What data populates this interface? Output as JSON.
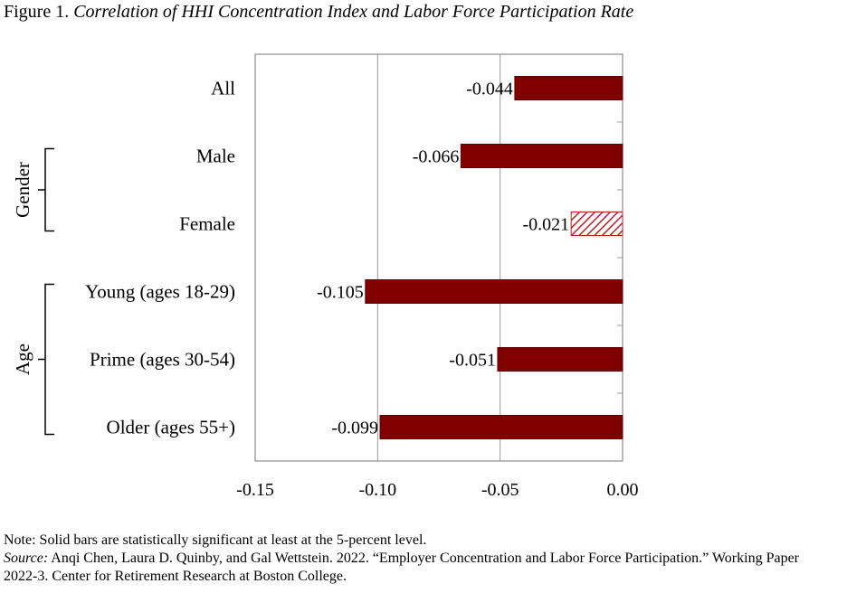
{
  "figure": {
    "label": "Figure 1.",
    "title": "Correlation of HHI Concentration Index and Labor Force Participation Rate"
  },
  "chart_data": {
    "type": "bar",
    "orientation": "horizontal",
    "title": "Correlation of HHI Concentration Index and Labor Force Participation Rate",
    "categories": [
      "All",
      "Male",
      "Female",
      "Young (ages 18-29)",
      "Prime (ages 30-54)",
      "Older (ages 55+)"
    ],
    "values": [
      -0.044,
      -0.066,
      -0.021,
      -0.105,
      -0.051,
      -0.099
    ],
    "value_labels": [
      "-0.044",
      "-0.066",
      "-0.021",
      "-0.105",
      "-0.051",
      "-0.099"
    ],
    "significant": [
      true,
      true,
      false,
      true,
      true,
      true
    ],
    "groups": [
      {
        "name": "Gender",
        "categories": [
          "Male",
          "Female"
        ]
      },
      {
        "name": "Age",
        "categories": [
          "Young (ages 18-29)",
          "Prime (ages 30-54)",
          "Older (ages 55+)"
        ]
      }
    ],
    "xlim": [
      -0.15,
      0.0
    ],
    "xticks": [
      -0.15,
      -0.1,
      -0.05,
      0.0
    ],
    "xtick_labels": [
      "-0.15",
      "-0.10",
      "-0.05",
      "0.00"
    ],
    "xlabel": "",
    "ylabel": "",
    "grid": "vertical",
    "legend": "none",
    "colors": {
      "bar": "#800000",
      "hatch": "#b22222"
    }
  },
  "notes": {
    "note": "Note: Solid bars are statistically significant at least at the 5-percent level.",
    "source_label": "Source:",
    "source_text": " Anqi Chen, Laura D. Quinby, and Gal Wettstein. 2022. “Employer Concentration and Labor Force Participation.” Working Paper 2022-3. Center for Retirement Research at Boston College."
  }
}
